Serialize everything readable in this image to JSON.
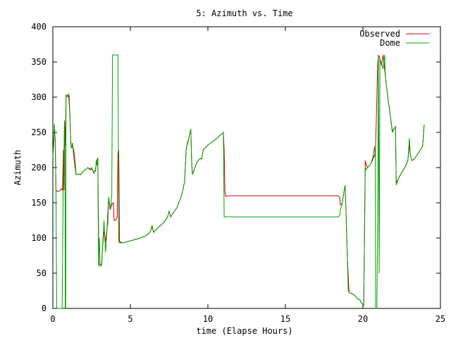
{
  "chart_data": {
    "type": "line",
    "title": "5: Azimuth vs. Time",
    "xlabel": "time (Elapse Hours)",
    "ylabel": "Azimuth",
    "xlim": [
      0,
      25
    ],
    "ylim": [
      0,
      400
    ],
    "xticks": [
      "0",
      "5",
      "10",
      "15",
      "20",
      "25"
    ],
    "yticks": [
      "0",
      "50",
      "100",
      "150",
      "200",
      "250",
      "300",
      "350",
      "400"
    ],
    "grid": false,
    "legend_position": "top-right",
    "series": [
      {
        "name": "Observed",
        "color": "#cc0000",
        "points": [
          [
            0.0,
            215
          ],
          [
            0.1,
            260
          ],
          [
            0.15,
            240
          ],
          [
            0.2,
            168
          ],
          [
            0.3,
            166
          ],
          [
            0.45,
            167
          ],
          [
            0.55,
            170
          ],
          [
            0.62,
            168
          ],
          [
            0.68,
            225
          ],
          [
            0.72,
            168
          ],
          [
            0.75,
            267
          ],
          [
            0.8,
            230
          ],
          [
            0.85,
            300
          ],
          [
            0.9,
            302
          ],
          [
            1.0,
            300
          ],
          [
            1.05,
            302
          ],
          [
            1.1,
            275
          ],
          [
            1.15,
            235
          ],
          [
            1.2,
            228
          ],
          [
            1.28,
            230
          ],
          [
            1.35,
            225
          ],
          [
            1.45,
            205
          ],
          [
            1.5,
            190
          ],
          [
            1.65,
            191
          ],
          [
            1.8,
            190
          ],
          [
            1.95,
            195
          ],
          [
            2.1,
            197
          ],
          [
            2.25,
            200
          ],
          [
            2.4,
            197
          ],
          [
            2.5,
            198
          ],
          [
            2.6,
            195
          ],
          [
            2.65,
            192
          ],
          [
            2.7,
            196
          ],
          [
            2.75,
            195
          ],
          [
            2.8,
            208
          ],
          [
            2.9,
            214
          ],
          [
            2.95,
            100
          ],
          [
            2.97,
            63
          ],
          [
            3.05,
            62
          ],
          [
            3.15,
            63
          ],
          [
            3.2,
            85
          ],
          [
            3.3,
            110
          ],
          [
            3.4,
            95
          ],
          [
            3.5,
            115
          ],
          [
            3.6,
            158
          ],
          [
            3.7,
            140
          ],
          [
            3.8,
            148
          ],
          [
            3.9,
            150
          ],
          [
            3.95,
            125
          ],
          [
            4.05,
            125
          ],
          [
            4.15,
            130
          ],
          [
            4.2,
            220
          ],
          [
            4.25,
            225
          ],
          [
            4.3,
            95
          ],
          [
            4.5,
            93
          ],
          [
            5.0,
            96
          ],
          [
            5.5,
            99
          ],
          [
            6.0,
            103
          ],
          [
            6.2,
            107
          ],
          [
            6.3,
            110
          ],
          [
            6.4,
            116
          ],
          [
            6.5,
            108
          ],
          [
            6.8,
            115
          ],
          [
            7.2,
            123
          ],
          [
            7.4,
            130
          ],
          [
            7.5,
            138
          ],
          [
            7.6,
            130
          ],
          [
            7.8,
            137
          ],
          [
            8.0,
            143
          ],
          [
            8.3,
            160
          ],
          [
            8.5,
            180
          ],
          [
            8.6,
            227
          ],
          [
            8.7,
            235
          ],
          [
            8.8,
            245
          ],
          [
            8.9,
            253
          ],
          [
            8.95,
            210
          ],
          [
            9.0,
            190
          ],
          [
            9.3,
            208
          ],
          [
            9.5,
            213
          ],
          [
            9.6,
            212
          ],
          [
            9.7,
            225
          ],
          [
            10.0,
            232
          ],
          [
            10.5,
            240
          ],
          [
            10.9,
            248
          ],
          [
            11.0,
            250
          ],
          [
            11.05,
            225
          ],
          [
            11.1,
            165
          ],
          [
            11.15,
            159
          ],
          [
            11.25,
            160
          ],
          [
            12.0,
            160
          ],
          [
            14.0,
            160
          ],
          [
            16.0,
            160
          ],
          [
            18.4,
            160
          ],
          [
            18.5,
            158
          ],
          [
            18.55,
            147
          ],
          [
            18.65,
            148
          ],
          [
            18.75,
            162
          ],
          [
            18.85,
            175
          ],
          [
            18.9,
            145
          ],
          [
            19.0,
            70
          ],
          [
            19.1,
            25
          ],
          [
            19.15,
            22
          ],
          [
            19.3,
            21
          ],
          [
            19.5,
            18
          ],
          [
            19.6,
            15
          ],
          [
            19.8,
            12
          ],
          [
            19.9,
            8
          ],
          [
            20.05,
            5
          ],
          [
            20.1,
            100
          ],
          [
            20.15,
            210
          ],
          [
            20.2,
            205
          ],
          [
            20.3,
            200
          ],
          [
            20.5,
            205
          ],
          [
            20.65,
            212
          ],
          [
            20.75,
            218
          ],
          [
            20.8,
            215
          ],
          [
            20.9,
            300
          ],
          [
            20.95,
            345
          ],
          [
            21.0,
            360
          ],
          [
            21.1,
            355
          ],
          [
            21.2,
            345
          ],
          [
            21.3,
            360
          ],
          [
            21.4,
            340
          ],
          [
            21.5,
            320
          ],
          [
            21.6,
            300
          ],
          [
            21.7,
            285
          ],
          [
            21.8,
            268
          ],
          [
            21.9,
            252
          ],
          [
            22.0,
            255
          ],
          [
            22.1,
            258
          ],
          [
            22.15,
            178
          ],
          [
            22.3,
            185
          ],
          [
            22.5,
            193
          ],
          [
            22.7,
            200
          ],
          [
            22.9,
            210
          ],
          [
            23.0,
            232
          ],
          [
            23.05,
            220
          ],
          [
            23.15,
            210
          ],
          [
            23.3,
            212
          ],
          [
            23.5,
            218
          ],
          [
            23.7,
            225
          ],
          [
            23.85,
            230
          ],
          [
            23.95,
            260
          ]
        ]
      },
      {
        "name": "Dome",
        "color": "#00a000",
        "points": [
          [
            0.0,
            215
          ],
          [
            0.05,
            230
          ],
          [
            0.1,
            262
          ],
          [
            0.15,
            240
          ],
          [
            0.2,
            170
          ],
          [
            0.25,
            0
          ],
          [
            0.35,
            0
          ],
          [
            0.45,
            0
          ],
          [
            0.55,
            0
          ],
          [
            0.6,
            0
          ],
          [
            0.68,
            200
          ],
          [
            0.72,
            225
          ],
          [
            0.75,
            267
          ],
          [
            0.78,
            230
          ],
          [
            0.8,
            0
          ],
          [
            0.83,
            0
          ],
          [
            0.85,
            303
          ],
          [
            0.95,
            302
          ],
          [
            1.0,
            305
          ],
          [
            1.02,
            300
          ],
          [
            1.1,
            275
          ],
          [
            1.15,
            240
          ],
          [
            1.2,
            228
          ],
          [
            1.28,
            235
          ],
          [
            1.32,
            220
          ],
          [
            1.4,
            205
          ],
          [
            1.5,
            190
          ],
          [
            1.65,
            191
          ],
          [
            1.8,
            190
          ],
          [
            1.95,
            195
          ],
          [
            2.1,
            197
          ],
          [
            2.25,
            200
          ],
          [
            2.4,
            198
          ],
          [
            2.5,
            200
          ],
          [
            2.6,
            195
          ],
          [
            2.65,
            192
          ],
          [
            2.7,
            196
          ],
          [
            2.75,
            195
          ],
          [
            2.8,
            210
          ],
          [
            2.85,
            203
          ],
          [
            2.9,
            214
          ],
          [
            2.92,
            140
          ],
          [
            2.95,
            60
          ],
          [
            3.0,
            100
          ],
          [
            3.05,
            60
          ],
          [
            3.1,
            60
          ],
          [
            3.15,
            62
          ],
          [
            3.2,
            85
          ],
          [
            3.3,
            125
          ],
          [
            3.35,
            100
          ],
          [
            3.4,
            80
          ],
          [
            3.5,
            115
          ],
          [
            3.55,
            120
          ],
          [
            3.6,
            158
          ],
          [
            3.7,
            140
          ],
          [
            3.8,
            158
          ],
          [
            3.85,
            360
          ],
          [
            4.0,
            360
          ],
          [
            4.15,
            360
          ],
          [
            4.2,
            360
          ],
          [
            4.25,
            95
          ],
          [
            4.3,
            93
          ],
          [
            4.5,
            93
          ],
          [
            5.0,
            96
          ],
          [
            5.5,
            99
          ],
          [
            6.0,
            103
          ],
          [
            6.2,
            107
          ],
          [
            6.3,
            110
          ],
          [
            6.4,
            118
          ],
          [
            6.5,
            108
          ],
          [
            6.8,
            115
          ],
          [
            7.2,
            123
          ],
          [
            7.4,
            130
          ],
          [
            7.5,
            138
          ],
          [
            7.6,
            130
          ],
          [
            7.8,
            137
          ],
          [
            8.0,
            143
          ],
          [
            8.3,
            160
          ],
          [
            8.5,
            180
          ],
          [
            8.6,
            227
          ],
          [
            8.7,
            237
          ],
          [
            8.8,
            245
          ],
          [
            8.9,
            255
          ],
          [
            8.95,
            210
          ],
          [
            9.0,
            190
          ],
          [
            9.3,
            208
          ],
          [
            9.5,
            213
          ],
          [
            9.6,
            212
          ],
          [
            9.7,
            225
          ],
          [
            10.0,
            232
          ],
          [
            10.5,
            240
          ],
          [
            10.9,
            248
          ],
          [
            11.0,
            250
          ],
          [
            11.05,
            130
          ],
          [
            11.2,
            130
          ],
          [
            12.0,
            130
          ],
          [
            14.0,
            130
          ],
          [
            16.0,
            130
          ],
          [
            18.4,
            130
          ],
          [
            18.5,
            132
          ],
          [
            18.55,
            140
          ],
          [
            18.65,
            148
          ],
          [
            18.75,
            162
          ],
          [
            18.85,
            175
          ],
          [
            18.9,
            145
          ],
          [
            19.0,
            70
          ],
          [
            19.05,
            25
          ],
          [
            19.15,
            22
          ],
          [
            19.3,
            21
          ],
          [
            19.5,
            18
          ],
          [
            19.6,
            15
          ],
          [
            19.8,
            12
          ],
          [
            19.9,
            8
          ],
          [
            20.05,
            4
          ],
          [
            20.1,
            100
          ],
          [
            20.15,
            200
          ],
          [
            20.2,
            197
          ],
          [
            20.3,
            200
          ],
          [
            20.5,
            205
          ],
          [
            20.65,
            215
          ],
          [
            20.75,
            230
          ],
          [
            20.8,
            215
          ],
          [
            20.82,
            0
          ],
          [
            20.9,
            0
          ],
          [
            20.95,
            120
          ],
          [
            21.0,
            360
          ],
          [
            21.05,
            50
          ],
          [
            21.1,
            355
          ],
          [
            21.3,
            340
          ],
          [
            21.4,
            360
          ],
          [
            21.45,
            330
          ],
          [
            21.5,
            320
          ],
          [
            21.6,
            300
          ],
          [
            21.7,
            285
          ],
          [
            21.8,
            268
          ],
          [
            21.9,
            250
          ],
          [
            22.0,
            255
          ],
          [
            22.1,
            258
          ],
          [
            22.15,
            175
          ],
          [
            22.3,
            185
          ],
          [
            22.5,
            193
          ],
          [
            22.7,
            200
          ],
          [
            22.9,
            210
          ],
          [
            23.0,
            242
          ],
          [
            23.05,
            220
          ],
          [
            23.15,
            210
          ],
          [
            23.3,
            212
          ],
          [
            23.5,
            218
          ],
          [
            23.7,
            225
          ],
          [
            23.85,
            230
          ],
          [
            23.95,
            261
          ]
        ]
      }
    ]
  }
}
